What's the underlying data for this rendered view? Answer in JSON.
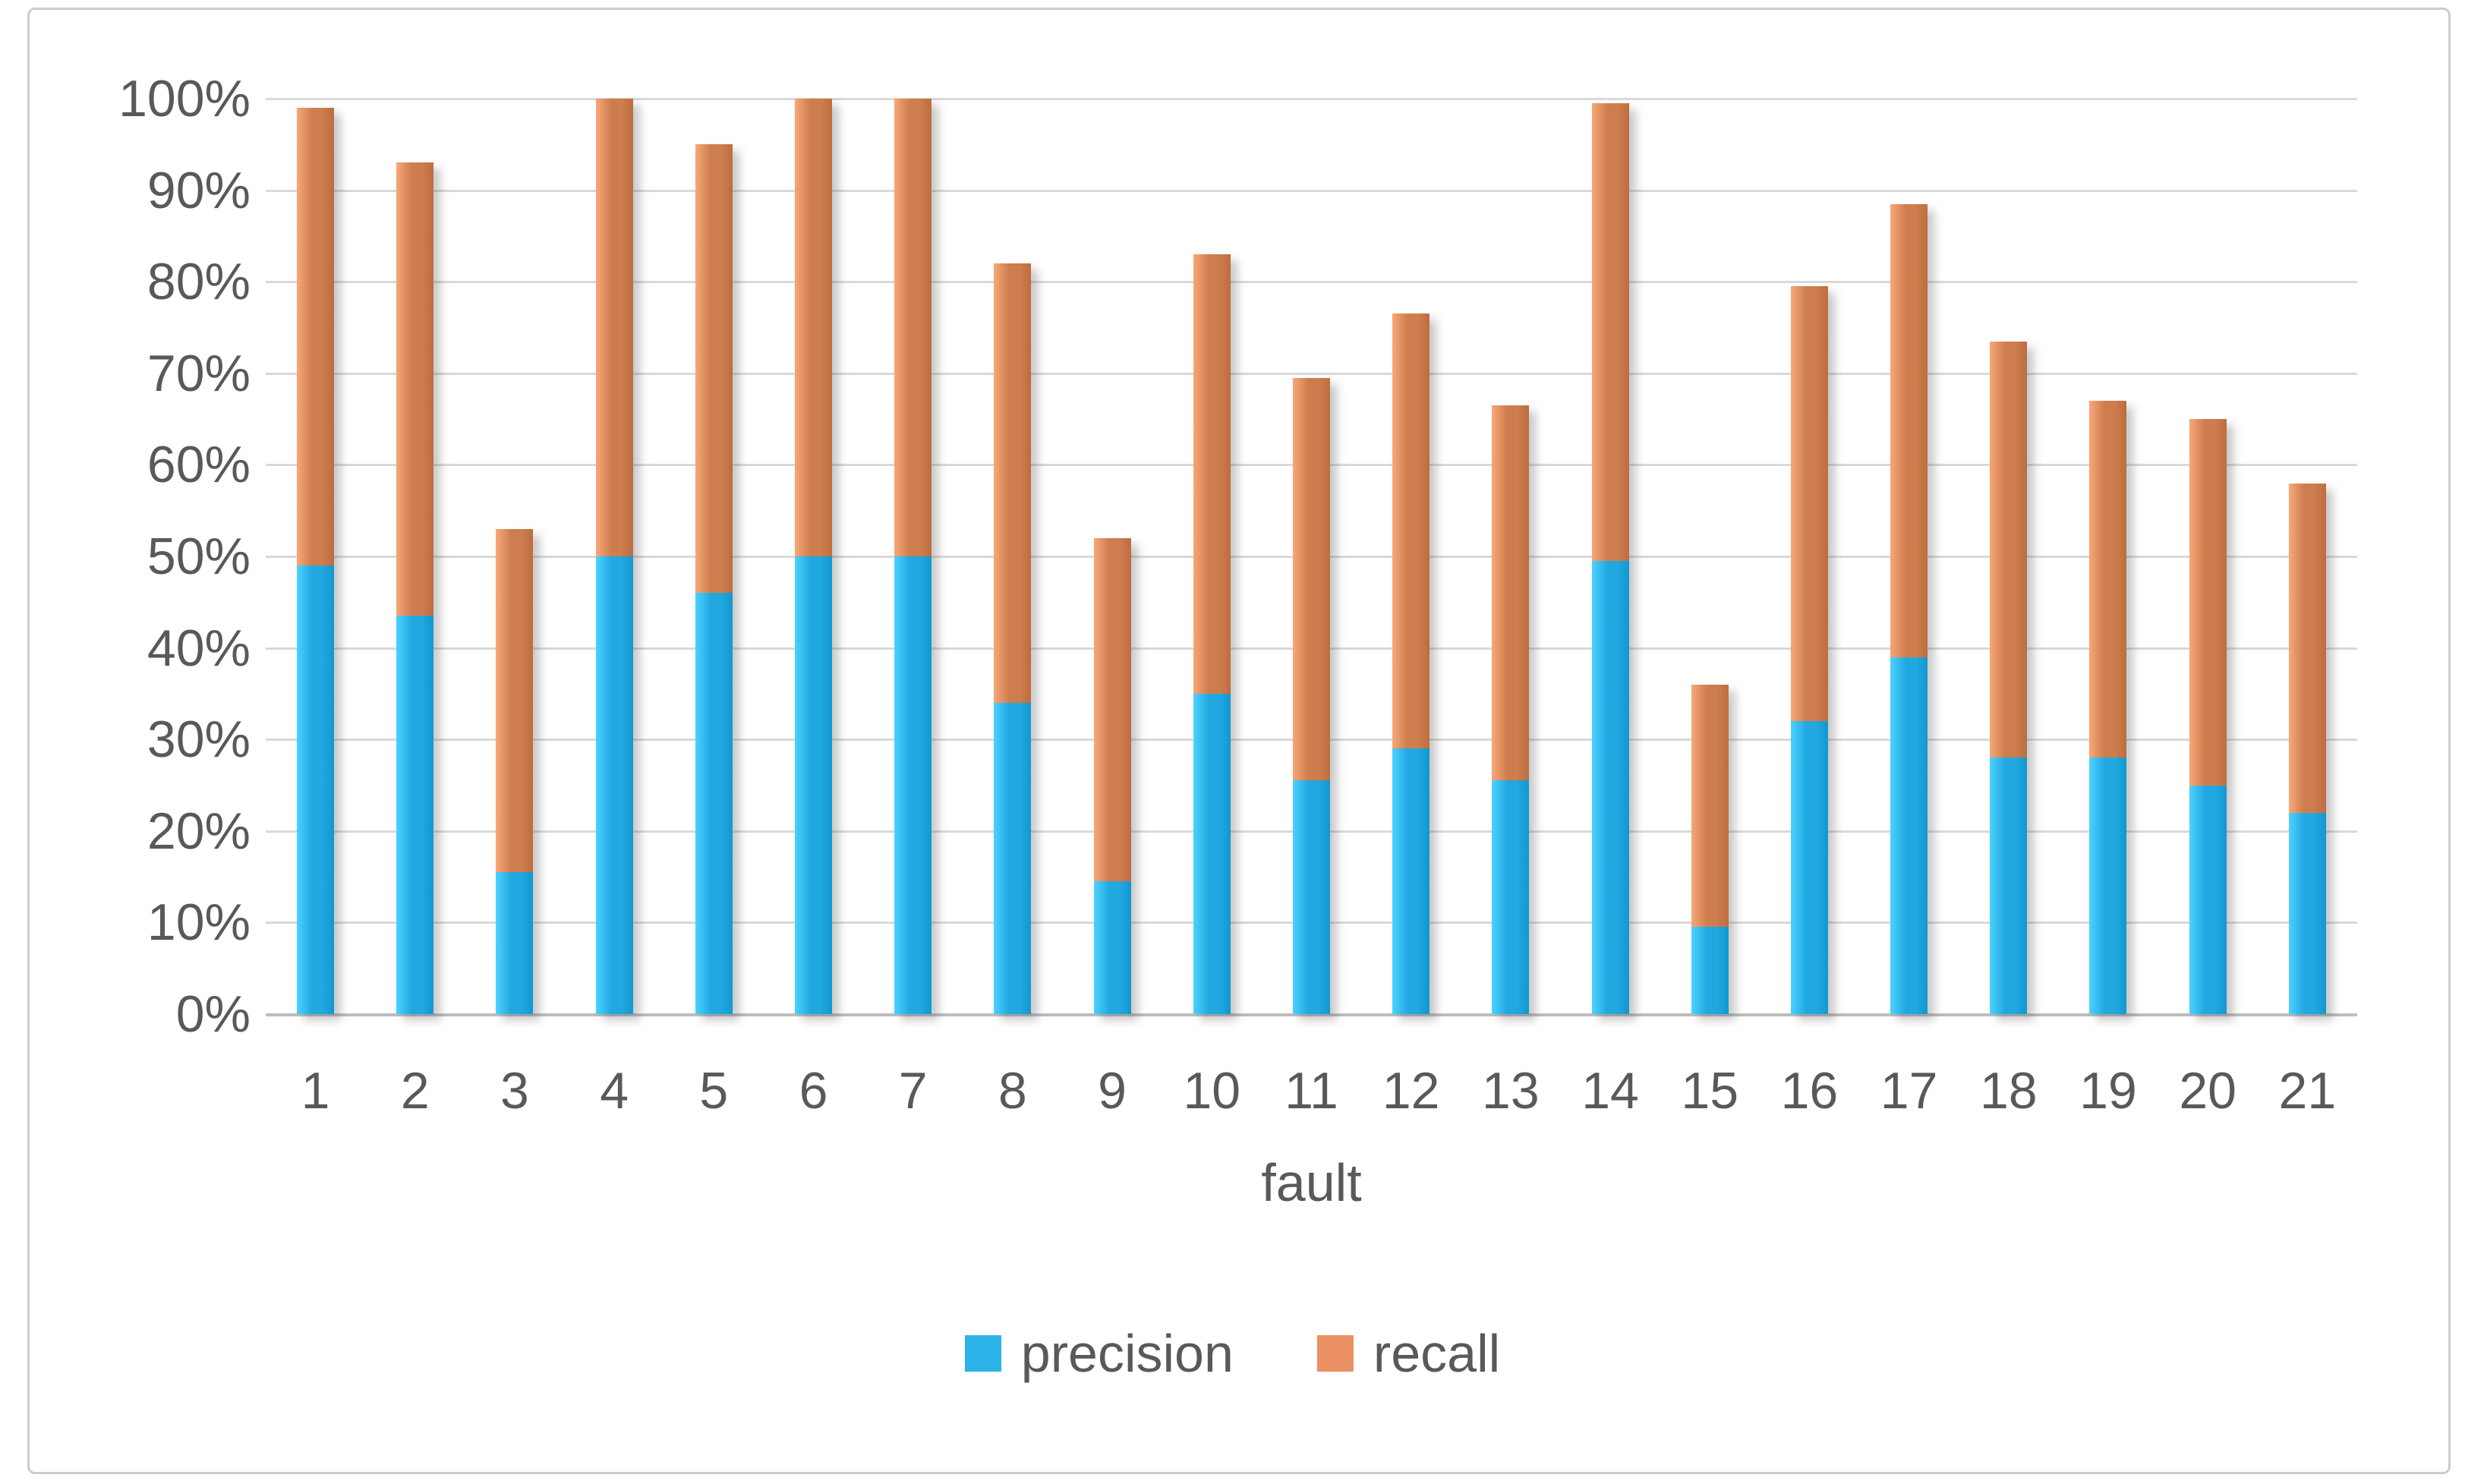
{
  "chart_data": {
    "type": "bar",
    "stacked": true,
    "title": "",
    "xlabel": "fault",
    "ylabel": "",
    "categories": [
      "1",
      "2",
      "3",
      "4",
      "5",
      "6",
      "7",
      "8",
      "9",
      "10",
      "11",
      "12",
      "13",
      "14",
      "15",
      "16",
      "17",
      "18",
      "19",
      "20",
      "21"
    ],
    "series": [
      {
        "name": "precision",
        "color": "#22a8e0",
        "values": [
          49,
          43.5,
          15.5,
          50,
          46,
          50,
          50,
          34,
          14.5,
          35,
          25.5,
          29,
          25.5,
          49.5,
          9.5,
          32,
          39,
          28,
          28,
          25,
          22
        ]
      },
      {
        "name": "recall",
        "color": "#cd7d4e",
        "values": [
          50,
          49.5,
          37.5,
          50,
          49,
          50,
          50,
          48,
          37.5,
          48,
          44,
          47.5,
          41,
          50,
          26.5,
          47.5,
          49.5,
          45.5,
          39,
          40,
          36
        ]
      }
    ],
    "stack_totals": [
      99,
      93,
      53,
      100,
      95,
      100,
      100,
      82,
      52,
      83,
      69.5,
      76.5,
      66.5,
      99.5,
      36,
      79.5,
      88.5,
      73.5,
      67,
      65,
      58
    ],
    "ylim": [
      0,
      100
    ],
    "ytick_step": 10,
    "ytick_labels": [
      "0%",
      "10%",
      "20%",
      "30%",
      "40%",
      "50%",
      "60%",
      "70%",
      "80%",
      "90%",
      "100%"
    ],
    "grid": true,
    "legend_position": "bottom"
  },
  "legend": {
    "items": [
      {
        "label": "precision",
        "color": "#2cb4e9"
      },
      {
        "label": "recall",
        "color": "#eb9163"
      }
    ]
  },
  "colors": {
    "text": "#595959",
    "gridline": "#d9d9d9",
    "axis_line": "#bdbdbd",
    "frame_border": "#cccccc",
    "background": "#ffffff"
  }
}
